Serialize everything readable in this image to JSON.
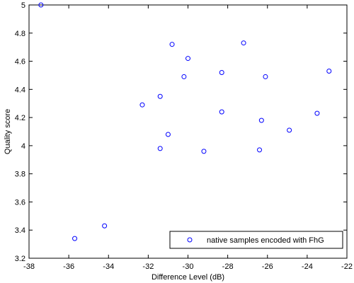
{
  "chart_data": {
    "type": "scatter",
    "xlabel": "Difference Level (dB)",
    "ylabel": "Quality score",
    "xlim": [
      -38,
      -22
    ],
    "ylim": [
      3.2,
      5
    ],
    "xticks": [
      -38,
      -36,
      -34,
      -32,
      -30,
      -28,
      -26,
      -24,
      -22
    ],
    "yticks": [
      3.2,
      3.4,
      3.6,
      3.8,
      4,
      4.2,
      4.4,
      4.6,
      4.8,
      5
    ],
    "xtick_labels": [
      "-38",
      "-36",
      "-34",
      "-32",
      "-30",
      "-28",
      "-26",
      "-24",
      "-22"
    ],
    "ytick_labels": [
      "3.2",
      "3.4",
      "3.6",
      "3.8",
      "4",
      "4.2",
      "4.4",
      "4.6",
      "4.8",
      "5"
    ],
    "grid": false,
    "legend_position": "bottom-right",
    "series": [
      {
        "name": "native samples encoded with FhG",
        "marker": "circle-open",
        "color": "#0000ff",
        "x": [
          -37.4,
          -35.7,
          -34.2,
          -32.3,
          -31.4,
          -31.4,
          -31.0,
          -30.8,
          -30.2,
          -30.0,
          -29.2,
          -28.3,
          -28.3,
          -27.2,
          -26.4,
          -26.3,
          -26.1,
          -24.9,
          -23.5,
          -22.9
        ],
        "y": [
          5.0,
          3.34,
          3.43,
          4.29,
          4.35,
          3.98,
          4.08,
          4.72,
          4.49,
          4.62,
          3.96,
          4.52,
          4.24,
          4.73,
          3.97,
          4.18,
          4.49,
          4.11,
          4.23,
          4.53
        ]
      }
    ]
  }
}
